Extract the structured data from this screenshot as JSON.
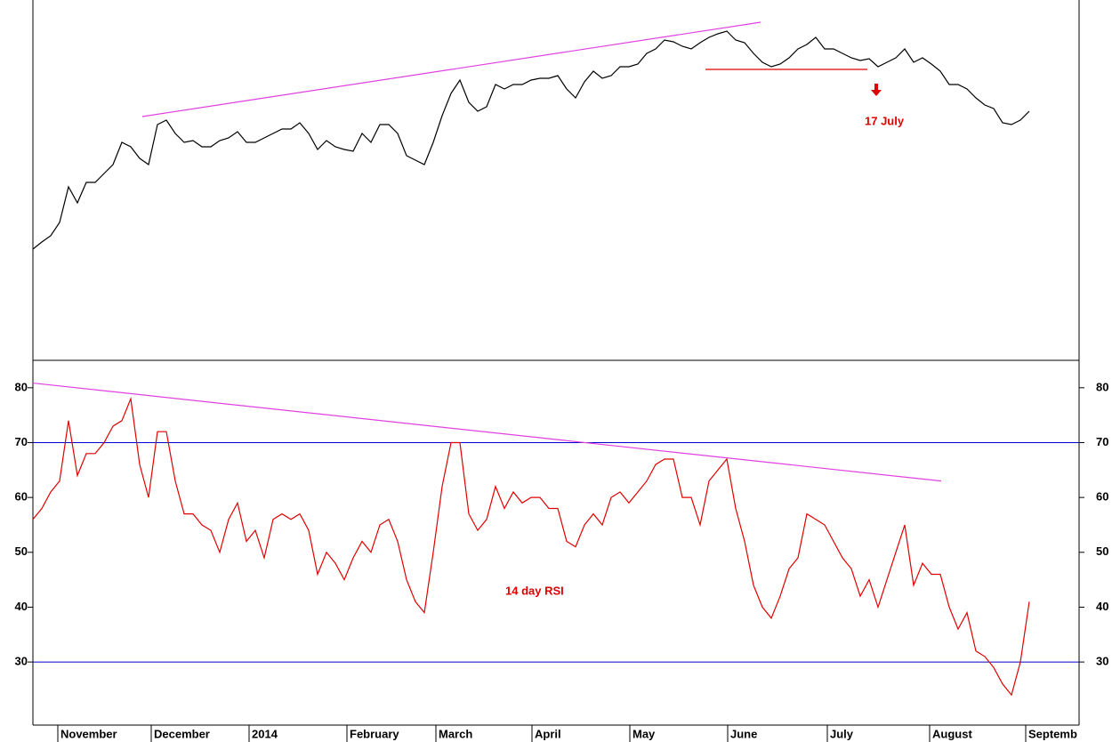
{
  "chart_data": [
    {
      "type": "line",
      "x": [
        0,
        2,
        4,
        6,
        8,
        10,
        12,
        14,
        16,
        18,
        20,
        22,
        24,
        26,
        28,
        30,
        32,
        34,
        36,
        38,
        40,
        42,
        44,
        46,
        48,
        50,
        52,
        54,
        56,
        58,
        60,
        62,
        64,
        66,
        68,
        70,
        72,
        74,
        76,
        78,
        80,
        82,
        84,
        86,
        88,
        90,
        92,
        94,
        96,
        98,
        100,
        102,
        104,
        106,
        108,
        110,
        112,
        114,
        116,
        118,
        120,
        122,
        124,
        126,
        128,
        130,
        132,
        134,
        136,
        138,
        140,
        142,
        144,
        146,
        148,
        150,
        152,
        154,
        156,
        158,
        160,
        162,
        164,
        166,
        168,
        170,
        172,
        174,
        176,
        178,
        180,
        182,
        184,
        186,
        188,
        190,
        192,
        194,
        196,
        198,
        200,
        202,
        204,
        206,
        208,
        210,
        212,
        214,
        216,
        218,
        220,
        222,
        224
      ],
      "values": [
        31.25,
        33.25,
        35,
        38.75,
        48.75,
        44.25,
        50,
        50,
        52.5,
        55,
        61.25,
        60,
        56.75,
        55,
        66.25,
        67.5,
        63.75,
        61.25,
        61.75,
        60,
        60,
        61.75,
        62.5,
        64.25,
        61.25,
        61.25,
        62.5,
        63.75,
        65,
        65,
        66.75,
        63.75,
        59.25,
        61.75,
        60,
        59.25,
        58.75,
        63.75,
        61.25,
        66.25,
        66.25,
        63.75,
        57.5,
        56.25,
        55,
        61.25,
        68.75,
        75,
        78.75,
        72.5,
        70,
        71.25,
        77.5,
        76.25,
        77.5,
        77.5,
        78.75,
        79.25,
        79.25,
        80,
        76.25,
        73.75,
        78.25,
        81.25,
        79.25,
        80,
        82.5,
        82.5,
        83.25,
        86.25,
        87.5,
        90,
        89.5,
        88.25,
        87.5,
        89.25,
        90.75,
        91.75,
        92.5,
        90,
        89.25,
        86.25,
        83.75,
        82.5,
        83.25,
        85,
        87.5,
        88.75,
        90.75,
        87.5,
        87.5,
        86.25,
        85,
        84.25,
        84.75,
        82.5,
        83.75,
        85,
        87.5,
        83.75,
        85,
        83.25,
        81.25,
        77.5,
        77.5,
        76.25,
        73.75,
        71.75,
        70.75,
        66.75,
        66.25,
        67.5,
        70
      ],
      "color": "#000000",
      "xlim": [
        0,
        235
      ],
      "ylim": [
        0,
        101.25
      ],
      "trendlines": [
        {
          "x": [
            24.6,
            163.6
          ],
          "y": [
            68.5,
            95
          ],
          "color": "#e040e0"
        },
        {
          "x": [
            151.2,
            187.6
          ],
          "y": [
            81.75,
            81.75
          ],
          "color": "#e00000"
        }
      ],
      "annotations": [
        {
          "text": "17 July",
          "x": 187,
          "y": 67,
          "color": "#e00000"
        }
      ]
    },
    {
      "type": "line",
      "x": [
        0,
        2,
        4,
        6,
        8,
        10,
        12,
        14,
        16,
        18,
        20,
        22,
        24,
        26,
        28,
        30,
        32,
        34,
        36,
        38,
        40,
        42,
        44,
        46,
        48,
        50,
        52,
        54,
        56,
        58,
        60,
        62,
        64,
        66,
        68,
        70,
        72,
        74,
        76,
        78,
        80,
        82,
        84,
        86,
        88,
        90,
        92,
        94,
        96,
        98,
        100,
        102,
        104,
        106,
        108,
        110,
        112,
        114,
        116,
        118,
        120,
        122,
        124,
        126,
        128,
        130,
        132,
        134,
        136,
        138,
        140,
        142,
        144,
        146,
        148,
        150,
        152,
        154,
        156,
        158,
        160,
        162,
        164,
        166,
        168,
        170,
        172,
        174,
        176,
        178,
        180,
        182,
        184,
        186,
        188,
        190,
        192,
        194,
        196,
        198,
        200,
        202,
        204,
        206,
        208,
        210,
        212,
        214,
        216,
        218,
        220,
        222,
        224
      ],
      "values": [
        56,
        58,
        61,
        63,
        74,
        64,
        68,
        68,
        70,
        73,
        74,
        78,
        66,
        60,
        72,
        72,
        63,
        57,
        57,
        55,
        54,
        50,
        56,
        59,
        52,
        54,
        49,
        56,
        57,
        56,
        57,
        54,
        46,
        50,
        48,
        45,
        49,
        52,
        50,
        55,
        56,
        52,
        45,
        41,
        39,
        50,
        62,
        70,
        70,
        57,
        54,
        56,
        62,
        58,
        61,
        59,
        60,
        60,
        58,
        58,
        52,
        51,
        55,
        57,
        55,
        60,
        61,
        59,
        61,
        63,
        66,
        67,
        67,
        60,
        60,
        55,
        63,
        65,
        67,
        58,
        52,
        44,
        40,
        38,
        42,
        47,
        49,
        57,
        56,
        55,
        52,
        49,
        47,
        42,
        45,
        40,
        45,
        50,
        55,
        44,
        48,
        46,
        46,
        40,
        36,
        39,
        32,
        31,
        29,
        26,
        24,
        30,
        41
      ],
      "color": "#e00000",
      "xlim": [
        0,
        235
      ],
      "ylim": [
        18.5,
        85
      ],
      "yticks": [
        30,
        40,
        50,
        60,
        70,
        80
      ],
      "xticks": [
        {
          "value": 5.6,
          "label": "November"
        },
        {
          "value": 26.6,
          "label": "December"
        },
        {
          "value": 48.6,
          "label": "2014"
        },
        {
          "value": 70.6,
          "label": "February"
        },
        {
          "value": 90.6,
          "label": "March"
        },
        {
          "value": 112.2,
          "label": "April"
        },
        {
          "value": 134.2,
          "label": "May"
        },
        {
          "value": 156.2,
          "label": "June"
        },
        {
          "value": 178.6,
          "label": "July"
        },
        {
          "value": 201.6,
          "label": "August"
        },
        {
          "value": 223.2,
          "label": "Septemb"
        }
      ],
      "hlines": [
        70,
        30
      ],
      "hline_color": "#0000cc",
      "trendlines": [
        {
          "x": [
            0,
            204.2
          ],
          "y": [
            80.85,
            63.0
          ],
          "color": "#e040e0"
        }
      ],
      "annotations": [
        {
          "text": "14 day RSI",
          "x": 106.2,
          "y": 42.8,
          "color": "#e00000"
        }
      ]
    }
  ]
}
